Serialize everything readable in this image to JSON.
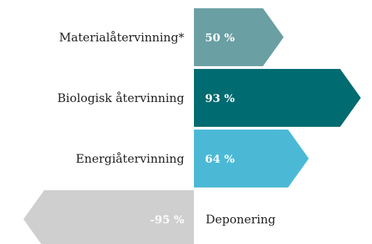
{
  "chart_data": {
    "type": "bar",
    "orientation": "horizontal",
    "categories": [
      "Materialåtervinning*",
      "Biologisk återvinning",
      "Energiåtervinning",
      "Deponering"
    ],
    "values": [
      50,
      93,
      64,
      -95
    ],
    "value_labels": [
      "50 %",
      "93 %",
      "64 %",
      "-95 %"
    ],
    "unit": "%",
    "colors": [
      "#6a9fa3",
      "#006b70",
      "#4bb9d6",
      "#cfcfcf"
    ],
    "title": "",
    "xlabel": "",
    "ylabel": "",
    "xlim": [
      -100,
      100
    ],
    "grid": false,
    "legend": "none",
    "bar_shape": "arrow"
  }
}
